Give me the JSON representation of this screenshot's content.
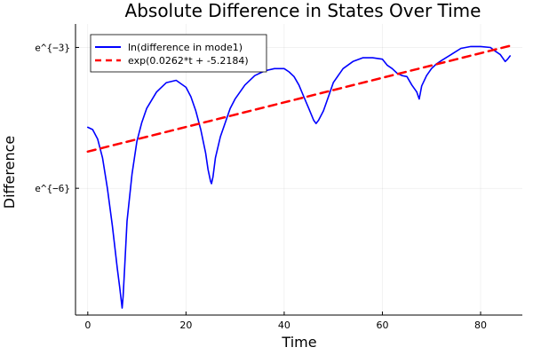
{
  "chart_data": {
    "type": "line",
    "title": "Absolute Difference in States Over Time",
    "xlabel": "Time",
    "ylabel": "Difference",
    "xlim": [
      -2.5,
      88.5
    ],
    "ylim": [
      -8.7,
      -2.5
    ],
    "x_ticks": [
      0,
      20,
      40,
      60,
      80
    ],
    "x_tick_labels": [
      "0",
      "20",
      "40",
      "60",
      "80"
    ],
    "y_ticks": [
      -6,
      -3
    ],
    "y_tick_labels": [
      "e^{−6}",
      "e^{−3}"
    ],
    "grid": true,
    "legend_position": "top-left",
    "series": [
      {
        "name": "ln(difference in mode1)",
        "color": "#0000ff",
        "style": "solid",
        "x": [
          0,
          1,
          2,
          3,
          4,
          5,
          6,
          6.5,
          7,
          7.2,
          7.5,
          8,
          9,
          10,
          11,
          12,
          14,
          16,
          18,
          20,
          21,
          22,
          23,
          24,
          24.5,
          25,
          25.2,
          25.5,
          26,
          27,
          28,
          29,
          30,
          32,
          34,
          36,
          38,
          40,
          41,
          42,
          43,
          44,
          45,
          46,
          46.5,
          47,
          48,
          49,
          50,
          52,
          54,
          56,
          58,
          60,
          61,
          62,
          63,
          64,
          65,
          66,
          67,
          67.5,
          68,
          69,
          70,
          71,
          72,
          74,
          76,
          78,
          80,
          82,
          83,
          84,
          85,
          85.5,
          86
        ],
        "y": [
          -4.7,
          -4.75,
          -4.95,
          -5.35,
          -6.0,
          -6.8,
          -7.7,
          -8.1,
          -8.55,
          -8.3,
          -7.7,
          -6.7,
          -5.7,
          -5.0,
          -4.6,
          -4.3,
          -3.95,
          -3.75,
          -3.7,
          -3.85,
          -4.05,
          -4.35,
          -4.75,
          -5.25,
          -5.6,
          -5.85,
          -5.9,
          -5.75,
          -5.35,
          -4.9,
          -4.6,
          -4.3,
          -4.1,
          -3.8,
          -3.6,
          -3.5,
          -3.45,
          -3.45,
          -3.52,
          -3.62,
          -3.8,
          -4.05,
          -4.3,
          -4.55,
          -4.62,
          -4.55,
          -4.35,
          -4.05,
          -3.75,
          -3.45,
          -3.3,
          -3.22,
          -3.22,
          -3.25,
          -3.38,
          -3.45,
          -3.55,
          -3.6,
          -3.62,
          -3.8,
          -3.95,
          -4.1,
          -3.82,
          -3.6,
          -3.45,
          -3.35,
          -3.28,
          -3.15,
          -3.02,
          -2.98,
          -2.98,
          -3.0,
          -3.08,
          -3.15,
          -3.3,
          -3.25,
          -3.18
        ]
      },
      {
        "name": "exp(0.0262*t + -5.2184)",
        "color": "#ff0000",
        "style": "dashed",
        "x": [
          0,
          86
        ],
        "y": [
          -5.2184,
          -2.9652
        ]
      }
    ]
  }
}
